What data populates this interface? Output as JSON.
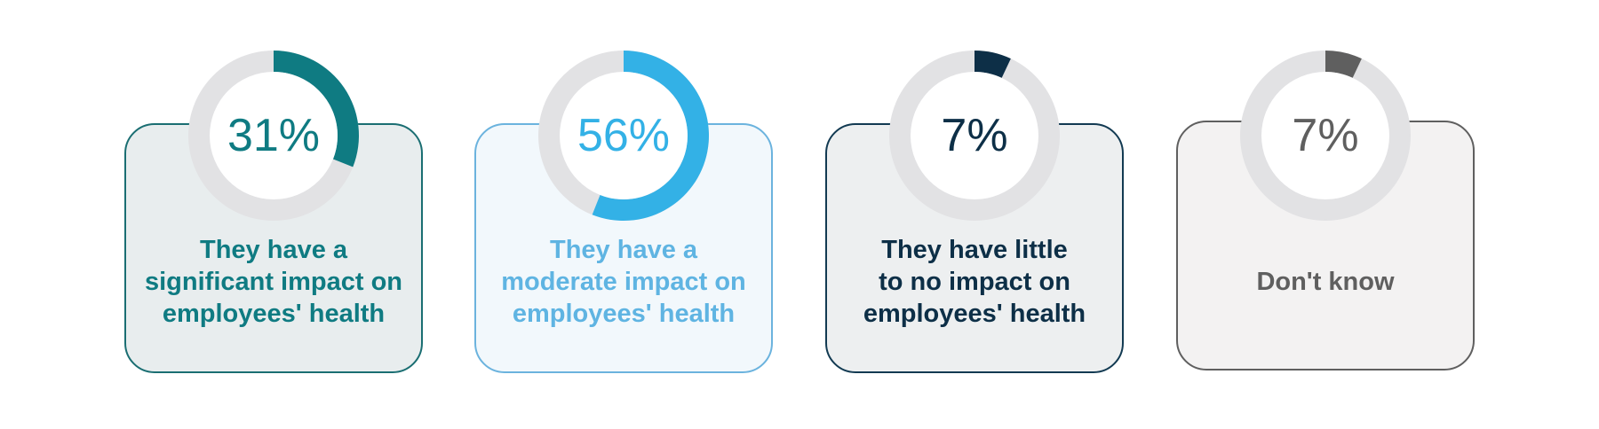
{
  "chart_data": {
    "type": "pie",
    "title": "",
    "categories": [
      "They have a\nsignificant impact on\nemployees' health",
      "They have a\nmoderate impact on\nemployees' health",
      "They have little\nto no impact on\nemployees' health",
      "Don't know"
    ],
    "values": [
      31,
      56,
      7,
      7
    ],
    "value_labels": [
      "31%",
      "56%",
      "7%",
      "7%"
    ],
    "colors": [
      "#0f7b82",
      "#33b1e6",
      "#0d2f47",
      "#5f5f5f"
    ],
    "card_fill": [
      "#e8edee",
      "#f2f8fc",
      "#edeff0",
      "#f3f2f2"
    ],
    "card_border": [
      "#1a6e72",
      "#6bb3de",
      "#123a52",
      "#5f5f5f"
    ],
    "track_color": "#e2e2e4"
  }
}
